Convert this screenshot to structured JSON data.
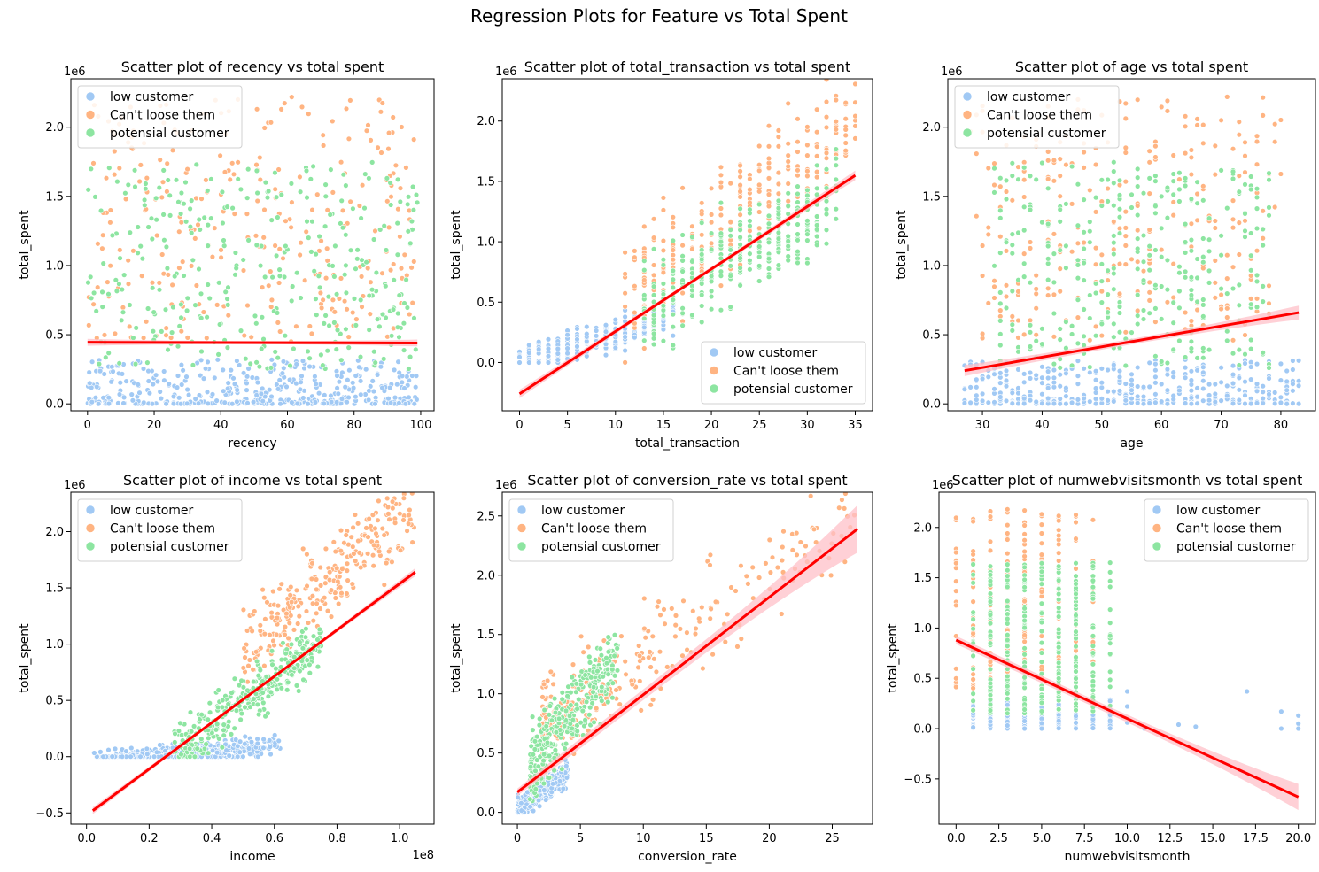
{
  "figure_title": "Regression Plots for Feature vs Total Spent",
  "palette": {
    "low customer": "#a1c9f4",
    "Can't loose them": "#ffb482",
    "potensial customer": "#8de5a1",
    "regression_line": "#ff0000",
    "ci_band": "#ffc0c8"
  },
  "legend_labels": [
    "low customer",
    "Can't loose them",
    "potensial customer"
  ],
  "chart_data": [
    {
      "type": "scatter",
      "title": "Scatter plot of recency vs total spent",
      "xlabel": "recency",
      "ylabel": "total_spent",
      "x_offset_label": "",
      "y_offset_label": "1e6",
      "xlim": [
        -5,
        104
      ],
      "ylim": [
        -0.05,
        2.35
      ],
      "xticks": [
        0,
        20,
        40,
        60,
        80,
        100
      ],
      "xtick_labels": [
        "0",
        "20",
        "40",
        "60",
        "80",
        "100"
      ],
      "yticks": [
        0,
        0.5,
        1.0,
        1.5,
        2.0
      ],
      "ytick_labels": [
        "0.0",
        "0.5",
        "1.0",
        "1.5",
        "2.0"
      ],
      "legend_position": "upper-left",
      "regression": {
        "x": [
          0,
          99
        ],
        "y": [
          0.445,
          0.44
        ],
        "ci": [
          0.025,
          0.025
        ]
      },
      "series": [
        {
          "name": "low customer",
          "x_range": [
            0,
            99
          ],
          "y_range": [
            0,
            0.32
          ],
          "y_skew": 2.4,
          "count": 420
        },
        {
          "name": "Can't loose them",
          "x_range": [
            0,
            99
          ],
          "y_range": [
            0.45,
            2.22
          ],
          "y_skew": 1.0,
          "count": 280
        },
        {
          "name": "potensial customer",
          "x_range": [
            0,
            99
          ],
          "y_range": [
            0.25,
            1.75
          ],
          "y_skew": 1.0,
          "count": 330
        }
      ]
    },
    {
      "type": "scatter",
      "title": "Scatter plot of total_transaction vs total spent",
      "xlabel": "total_transaction",
      "ylabel": "total_spent",
      "x_offset_label": "",
      "y_offset_label": "1e6",
      "xlim": [
        -1.8,
        36.8
      ],
      "ylim": [
        -0.4,
        2.35
      ],
      "xticks": [
        0,
        5,
        10,
        15,
        20,
        25,
        30,
        35
      ],
      "xtick_labels": [
        "0",
        "5",
        "10",
        "15",
        "20",
        "25",
        "30",
        "35"
      ],
      "yticks": [
        0,
        0.5,
        1.0,
        1.5,
        2.0
      ],
      "ytick_labels": [
        "0.0",
        "0.5",
        "1.0",
        "1.5",
        "2.0"
      ],
      "legend_position": "lower-right",
      "regression": {
        "x": [
          0,
          35
        ],
        "y": [
          -0.26,
          1.55
        ],
        "ci": [
          0.035,
          0.04
        ]
      },
      "series": [
        {
          "name": "low customer",
          "x_range": [
            0,
            16
          ],
          "integer_x": true,
          "y_line": [
            0.0,
            0.024
          ],
          "y_spread": 0.2,
          "count": 330
        },
        {
          "name": "Can't loose them",
          "x_range": [
            11,
            35
          ],
          "integer_x": true,
          "y_line": [
            -0.1,
            0.06
          ],
          "y_spread": 0.7,
          "count": 280
        },
        {
          "name": "potensial customer",
          "x_range": [
            13,
            33
          ],
          "integer_x": true,
          "y_line": [
            -0.15,
            0.045
          ],
          "y_spread": 0.55,
          "count": 330
        }
      ]
    },
    {
      "type": "scatter",
      "title": "Scatter plot of age vs total spent",
      "xlabel": "age",
      "ylabel": "total_spent",
      "x_offset_label": "",
      "y_offset_label": "1e6",
      "xlim": [
        24.2,
        85.8
      ],
      "ylim": [
        -0.05,
        2.35
      ],
      "xticks": [
        30,
        40,
        50,
        60,
        70,
        80
      ],
      "xtick_labels": [
        "30",
        "40",
        "50",
        "60",
        "70",
        "80"
      ],
      "yticks": [
        0,
        0.5,
        1.0,
        1.5,
        2.0
      ],
      "ytick_labels": [
        "0.0",
        "0.5",
        "1.0",
        "1.5",
        "2.0"
      ],
      "legend_position": "upper-left",
      "regression": {
        "x": [
          27,
          83
        ],
        "y": [
          0.24,
          0.66
        ],
        "ci": [
          0.04,
          0.05
        ]
      },
      "series": [
        {
          "name": "low customer",
          "x_range": [
            27,
            83
          ],
          "integer_x": true,
          "y_range": [
            0,
            0.32
          ],
          "y_skew": 2.4,
          "count": 420
        },
        {
          "name": "Can't loose them",
          "x_range": [
            28,
            80
          ],
          "integer_x": true,
          "y_range": [
            0.45,
            2.22
          ],
          "y_skew": 1.0,
          "count": 280
        },
        {
          "name": "potensial customer",
          "x_range": [
            32,
            78
          ],
          "integer_x": true,
          "y_range": [
            0.25,
            1.75
          ],
          "y_skew": 1.0,
          "count": 330
        }
      ]
    },
    {
      "type": "scatter",
      "title": "Scatter plot of income vs total spent",
      "xlabel": "income",
      "ylabel": "total_spent",
      "x_offset_label": "1e8",
      "y_offset_label": "1e6",
      "xlim": [
        -0.05,
        1.11
      ],
      "ylim": [
        -0.6,
        2.35
      ],
      "xticks": [
        0,
        0.2,
        0.4,
        0.6,
        0.8,
        1.0
      ],
      "xtick_labels": [
        "0.0",
        "0.2",
        "0.4",
        "0.6",
        "0.8",
        "1.0"
      ],
      "yticks": [
        -0.5,
        0,
        0.5,
        1.0,
        1.5,
        2.0
      ],
      "ytick_labels": [
        "−0.5",
        "0.0",
        "0.5",
        "1.0",
        "1.5",
        "2.0"
      ],
      "legend_position": "upper-left",
      "regression": {
        "x": [
          0.02,
          1.05
        ],
        "y": [
          -0.48,
          1.64
        ],
        "ci": [
          0.03,
          0.035
        ]
      },
      "series": [
        {
          "name": "low customer",
          "x_range": [
            0.02,
            0.62
          ],
          "y_line": [
            -0.05,
            0.25
          ],
          "y_spread": 0.13,
          "count": 420
        },
        {
          "name": "Can't loose them",
          "x_range": [
            0.5,
            1.05
          ],
          "y_line": [
            -0.25,
            2.4
          ],
          "y_spread": 0.55,
          "count": 280
        },
        {
          "name": "potensial customer",
          "x_range": [
            0.28,
            0.75
          ],
          "y_line": [
            -0.5,
            2.0
          ],
          "y_spread": 0.35,
          "count": 330
        }
      ]
    },
    {
      "type": "scatter",
      "title": "Scatter plot of conversion_rate vs total spent",
      "xlabel": "conversion_rate",
      "ylabel": "total_spent",
      "x_offset_label": "",
      "y_offset_label": "1e6",
      "xlim": [
        -1.2,
        28.2
      ],
      "ylim": [
        -0.1,
        2.7
      ],
      "xticks": [
        0,
        5,
        10,
        15,
        20,
        25
      ],
      "xtick_labels": [
        "0",
        "5",
        "10",
        "15",
        "20",
        "25"
      ],
      "yticks": [
        0,
        0.5,
        1.0,
        1.5,
        2.0,
        2.5
      ],
      "ytick_labels": [
        "0.0",
        "0.5",
        "1.0",
        "1.5",
        "2.0",
        "2.5"
      ],
      "legend_position": "upper-left",
      "regression": {
        "x": [
          0,
          27
        ],
        "y": [
          0.17,
          2.39
        ],
        "ci": [
          0.03,
          0.2
        ]
      },
      "series": [
        {
          "name": "low customer",
          "x_range": [
            0,
            4
          ],
          "y_line": [
            0.02,
            0.08
          ],
          "y_spread": 0.15,
          "count": 420
        },
        {
          "name": "Can't loose them",
          "x_range": [
            2,
            27
          ],
          "x_skew": 2.2,
          "y_line": [
            0.6,
            0.07
          ],
          "y_spread": 0.6,
          "count": 280
        },
        {
          "name": "potensial customer",
          "x_range": [
            1,
            8
          ],
          "x_skew": 1.3,
          "y_line": [
            0.25,
            0.13
          ],
          "y_spread": 0.45,
          "count": 330
        }
      ]
    },
    {
      "type": "scatter",
      "title": "Scatter plot of numwebvisitsmonth vs total spent",
      "xlabel": "numwebvisitsmonth",
      "ylabel": "total_spent",
      "x_offset_label": "",
      "y_offset_label": "1e6",
      "xlim": [
        -1,
        21
      ],
      "ylim": [
        -0.95,
        2.35
      ],
      "xticks": [
        0,
        2.5,
        5,
        7.5,
        10,
        12.5,
        15,
        17.5,
        20
      ],
      "xtick_labels": [
        "0.0",
        "2.5",
        "5.0",
        "7.5",
        "10.0",
        "12.5",
        "15.0",
        "17.5",
        "20.0"
      ],
      "yticks": [
        -0.5,
        0,
        0.5,
        1.0,
        1.5,
        2.0
      ],
      "ytick_labels": [
        "−0.5",
        "0.0",
        "0.5",
        "1.0",
        "1.5",
        "2.0"
      ],
      "legend_position": "upper-right",
      "regression": {
        "x": [
          0,
          20
        ],
        "y": [
          0.88,
          -0.68
        ],
        "ci": [
          0.04,
          0.13
        ]
      },
      "series": [
        {
          "name": "low customer",
          "x_range": [
            1,
            9
          ],
          "integer_x": true,
          "y_range": [
            0,
            0.3
          ],
          "y_skew": 1.6,
          "count": 420
        },
        {
          "name": "Can't loose them",
          "x_range": [
            0,
            8
          ],
          "integer_x": true,
          "y_range": [
            0.4,
            2.2
          ],
          "y_skew": 1.3,
          "count": 280
        },
        {
          "name": "potensial customer",
          "x_range": [
            1,
            9
          ],
          "integer_x": true,
          "y_range": [
            0.15,
            1.65
          ],
          "y_skew": 1.1,
          "count": 330
        },
        {
          "name": "low customer",
          "points": [
            [
              10,
              0.22
            ],
            [
              10,
              0.37
            ],
            [
              10,
              0.06
            ],
            [
              11,
              0.0
            ],
            [
              13,
              0.04
            ],
            [
              14,
              0.02
            ],
            [
              17,
              0.37
            ],
            [
              19,
              0.17
            ],
            [
              19,
              0.0
            ],
            [
              20,
              0.13
            ],
            [
              20,
              0.05
            ],
            [
              20,
              0.0
            ]
          ]
        }
      ]
    }
  ]
}
